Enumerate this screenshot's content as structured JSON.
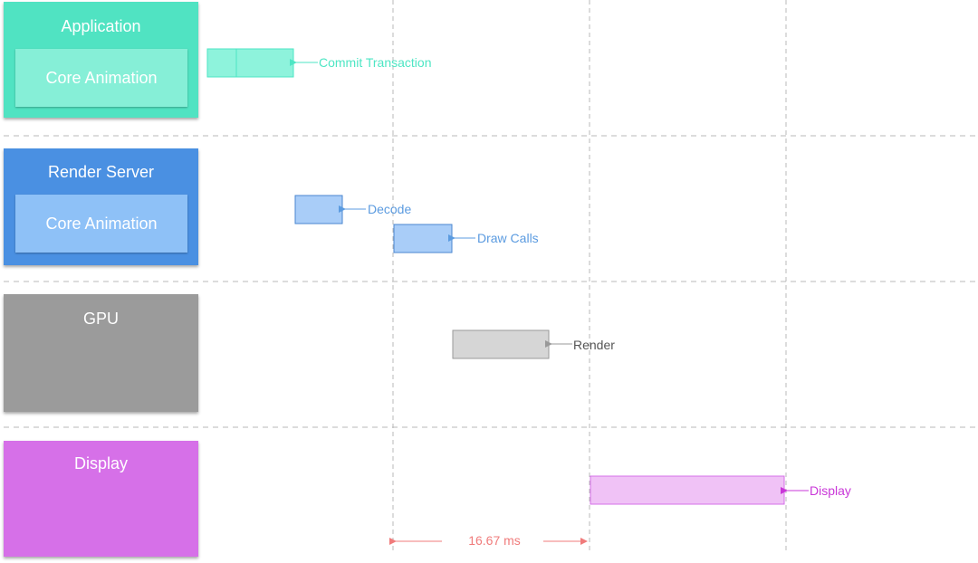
{
  "lanes": {
    "application": {
      "title": "Application",
      "inner": "Core Animation",
      "color": "#50e3c2",
      "inner_color": "#86efd7"
    },
    "render_server": {
      "title": "Render Server",
      "inner": "Core Animation",
      "color": "#4a90e2",
      "inner_color": "#8ec1f7"
    },
    "gpu": {
      "title": "GPU",
      "color": "#9b9b9b"
    },
    "display": {
      "title": "Display",
      "color": "#d670e8"
    }
  },
  "events": {
    "commit": "Commit Transaction",
    "decode": "Decode",
    "draw_calls": "Draw Calls",
    "render": "Render",
    "display": "Display"
  },
  "timing": {
    "frame_interval": "16.67 ms"
  },
  "colors": {
    "commit": "#4ee6c4",
    "decode": "#5b9be0",
    "gpu": "#777777",
    "display": "#c937d8",
    "interval": "#f07b7b",
    "divider": "#b8b8b8"
  }
}
